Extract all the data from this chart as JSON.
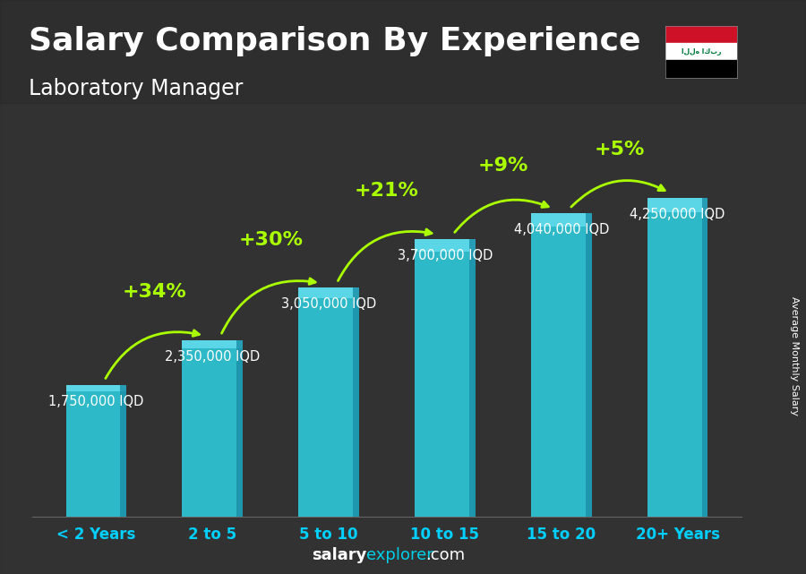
{
  "title": "Salary Comparison By Experience",
  "subtitle": "Laboratory Manager",
  "categories": [
    "< 2 Years",
    "2 to 5",
    "5 to 10",
    "10 to 15",
    "15 to 20",
    "20+ Years"
  ],
  "values": [
    1750000,
    2350000,
    3050000,
    3700000,
    4040000,
    4250000
  ],
  "value_labels": [
    "1,750,000 IQD",
    "2,350,000 IQD",
    "3,050,000 IQD",
    "3,700,000 IQD",
    "4,040,000 IQD",
    "4,250,000 IQD"
  ],
  "pct_labels": [
    "+34%",
    "+30%",
    "+21%",
    "+9%",
    "+5%"
  ],
  "bar_color_main": "#2ec4d6",
  "bar_color_light": "#5dd8e8",
  "bar_color_dark": "#1a8fa8",
  "arrow_color": "#aaff00",
  "pct_color": "#aaff00",
  "title_color": "#ffffff",
  "subtitle_color": "#ffffff",
  "value_label_color": "#ffffff",
  "tick_color": "#00cfff",
  "footer_salary_color": "#ffffff",
  "footer_explorer_color": "#00d0e8",
  "footer_com_color": "#ffffff",
  "side_label": "Average Monthly Salary",
  "side_label_color": "#ffffff",
  "ylim": [
    0,
    5200000
  ],
  "bg_color": "#3a3a3a",
  "title_fontsize": 26,
  "subtitle_fontsize": 17,
  "tick_fontsize": 12,
  "value_fontsize": 10.5,
  "pct_fontsize": 16,
  "footer_fontsize": 13,
  "side_label_fontsize": 8
}
